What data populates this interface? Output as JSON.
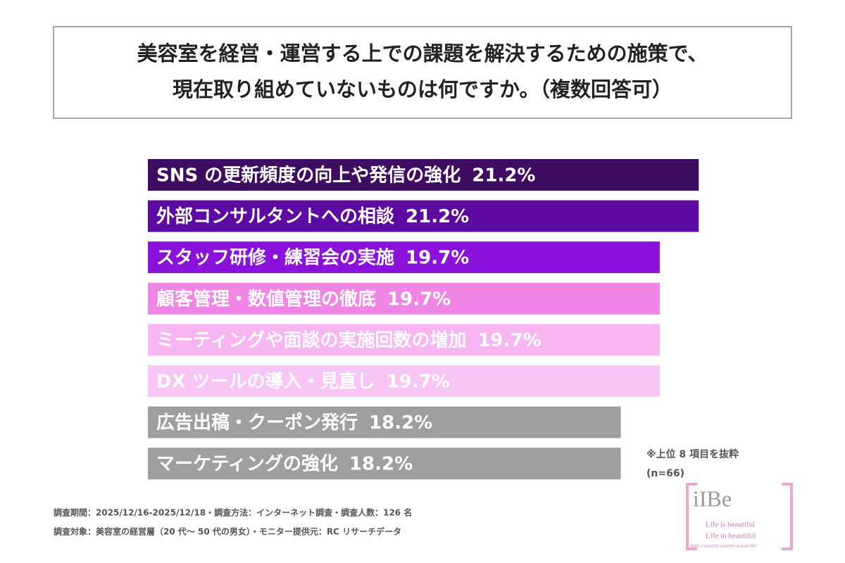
{
  "chart_data": {
    "type": "bar",
    "orientation": "horizontal",
    "title": [
      "美容室を経営・運営する上での課題を解決するための施策で、",
      "現在取り組めていないものは何ですか。（複数回答可）"
    ],
    "categories": [
      "SNS の更新頻度の向上や発信の強化",
      "外部コンサルタントへの相談",
      "スタッフ研修・練習会の実施",
      "顧客管理・数値管理の徹底",
      "ミーティングや面談の実施回数の増加",
      "DX ツールの導入・見直し",
      "広告出稿・クーポン発行",
      "マーケティングの強化"
    ],
    "values": [
      21.2,
      21.2,
      19.7,
      19.7,
      19.7,
      19.7,
      18.2,
      18.2
    ],
    "value_labels": [
      "21.2%",
      "21.2%",
      "19.7%",
      "19.7%",
      "19.7%",
      "19.7%",
      "18.2%",
      "18.2%"
    ],
    "colors": [
      "#3e0d62",
      "#5c0aa2",
      "#8b12db",
      "#ef86e6",
      "#f7b6f2",
      "#f9c5f5",
      "#a09fa0",
      "#a09fa0"
    ],
    "notes": [
      "※上位 8 項目を抜粋",
      "(n=66)"
    ]
  },
  "footer": [
    "調査期間：2025/12/16-2025/12/18・調査方法：インターネット調査・調査人数：126 名",
    "調査対象：美容室の経営層（20 代～ 50 代の男女）・モニター提供元：RC リサーチデータ"
  ],
  "logo": {
    "name": "iIBe",
    "lines": [
      "Life is beautiful",
      "Life in beautiful",
      "Make a beautiful someone on your life!"
    ]
  }
}
